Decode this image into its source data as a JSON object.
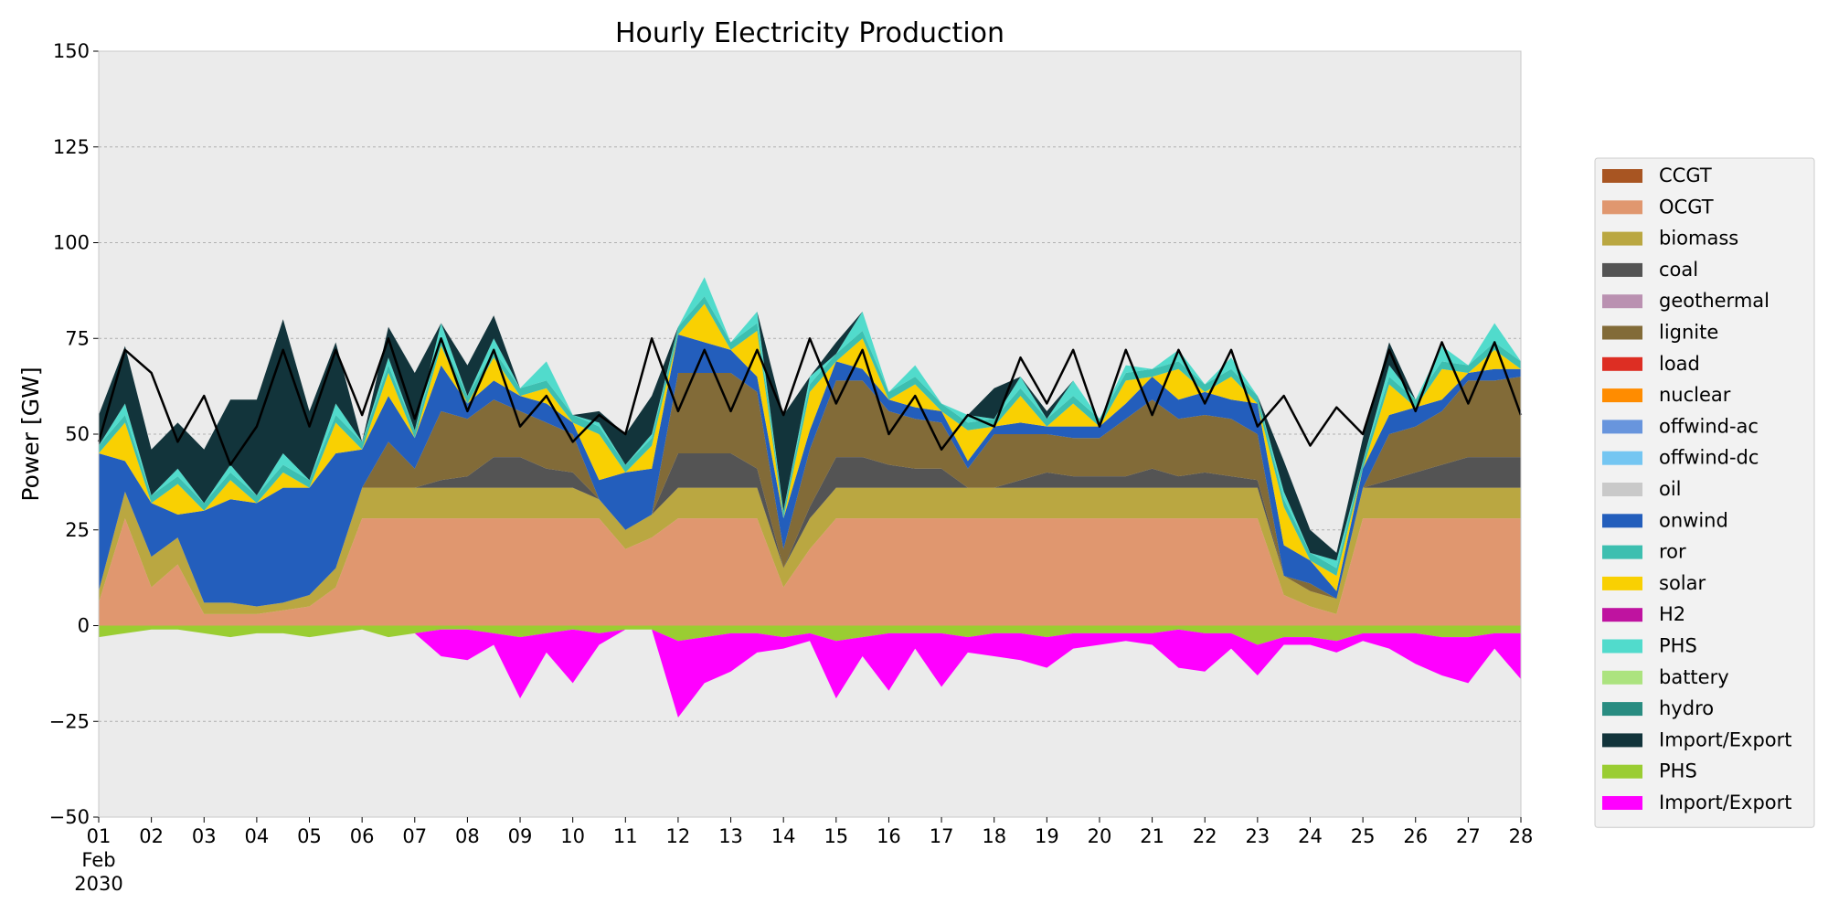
{
  "chart_data": {
    "type": "area",
    "title": "Hourly Electricity Production",
    "ylabel": "Power [GW]",
    "xlabel": "",
    "ylim": [
      -50,
      150
    ],
    "yticks": [
      -50,
      -25,
      0,
      25,
      50,
      75,
      100,
      125,
      150
    ],
    "ytick_labels": [
      "−50",
      "−25",
      "0",
      "25",
      "50",
      "75",
      "100",
      "125",
      "150"
    ],
    "xlim": [
      1,
      28
    ],
    "xticks": [
      1,
      2,
      3,
      4,
      5,
      6,
      7,
      8,
      9,
      10,
      11,
      12,
      13,
      14,
      15,
      16,
      17,
      18,
      19,
      20,
      21,
      22,
      23,
      24,
      25,
      26,
      27,
      28
    ],
    "xtick_labels": [
      "01",
      "02",
      "03",
      "04",
      "05",
      "06",
      "07",
      "08",
      "09",
      "10",
      "11",
      "12",
      "13",
      "14",
      "15",
      "16",
      "17",
      "18",
      "19",
      "20",
      "21",
      "22",
      "23",
      "24",
      "25",
      "26",
      "27",
      "28"
    ],
    "xtick_sublabel": [
      "Feb",
      "2030"
    ],
    "grid": true,
    "legend_position": "right",
    "x_unit": "day of February 2030",
    "x": [
      1,
      1.5,
      2,
      2.5,
      3,
      3.5,
      4,
      4.5,
      5,
      5.5,
      6,
      6.5,
      7,
      7.5,
      8,
      8.5,
      9,
      9.5,
      10,
      10.5,
      11,
      11.5,
      12,
      12.5,
      13,
      13.5,
      14,
      14.5,
      15,
      15.5,
      16,
      16.5,
      17,
      17.5,
      18,
      18.5,
      19,
      19.5,
      20,
      20.5,
      21,
      21.5,
      22,
      22.5,
      23,
      23.5,
      24,
      24.5,
      25,
      25.5,
      26,
      26.5,
      27,
      27.5,
      28
    ],
    "series": [
      {
        "name": "OCGT",
        "color": "#e0976f",
        "values": [
          6,
          28,
          10,
          16,
          3,
          3,
          3,
          4,
          5,
          10,
          28,
          28,
          28,
          28,
          28,
          28,
          28,
          28,
          28,
          28,
          20,
          23,
          28,
          28,
          28,
          28,
          10,
          20,
          28,
          28,
          28,
          28,
          28,
          28,
          28,
          28,
          28,
          28,
          28,
          28,
          28,
          28,
          28,
          28,
          28,
          8,
          5,
          3,
          28,
          28,
          28,
          28,
          28,
          28,
          28
        ]
      },
      {
        "name": "biomass",
        "color": "#baa741",
        "values": [
          3,
          7,
          8,
          7,
          3,
          3,
          2,
          2,
          3,
          5,
          8,
          8,
          8,
          8,
          8,
          8,
          8,
          8,
          8,
          5,
          5,
          6,
          8,
          8,
          8,
          8,
          5,
          8,
          8,
          8,
          8,
          8,
          8,
          8,
          8,
          8,
          8,
          8,
          8,
          8,
          8,
          8,
          8,
          8,
          8,
          5,
          4,
          4,
          8,
          8,
          8,
          8,
          8,
          8,
          8
        ]
      },
      {
        "name": "coal",
        "color": "#545454",
        "values": [
          0,
          0,
          0,
          0,
          0,
          0,
          0,
          0,
          0,
          0,
          0,
          0,
          0,
          2,
          3,
          8,
          8,
          5,
          4,
          0,
          0,
          0,
          9,
          9,
          9,
          5,
          0,
          3,
          8,
          8,
          6,
          5,
          5,
          0,
          0,
          2,
          4,
          3,
          3,
          3,
          5,
          3,
          4,
          3,
          2,
          0,
          0,
          0,
          0,
          2,
          4,
          6,
          8,
          8,
          8
        ]
      },
      {
        "name": "lignite",
        "color": "#826b38",
        "values": [
          0,
          0,
          0,
          0,
          0,
          0,
          0,
          0,
          0,
          0,
          0,
          12,
          5,
          18,
          15,
          15,
          12,
          12,
          10,
          0,
          0,
          0,
          21,
          21,
          21,
          20,
          5,
          15,
          20,
          20,
          14,
          13,
          12,
          5,
          14,
          12,
          10,
          10,
          10,
          15,
          18,
          15,
          15,
          15,
          12,
          0,
          2,
          0,
          0,
          12,
          12,
          14,
          20,
          20,
          21
        ]
      },
      {
        "name": "onwind",
        "color": "#235ebc",
        "values": [
          36,
          8,
          14,
          6,
          24,
          27,
          27,
          30,
          28,
          30,
          10,
          12,
          8,
          12,
          4,
          5,
          4,
          5,
          3,
          5,
          15,
          12,
          10,
          8,
          6,
          4,
          8,
          5,
          5,
          3,
          3,
          3,
          3,
          2,
          2,
          3,
          2,
          3,
          3,
          4,
          6,
          5,
          6,
          5,
          8,
          8,
          6,
          2,
          5,
          5,
          5,
          3,
          2,
          3,
          2
        ]
      },
      {
        "name": "solar",
        "color": "#f9d002",
        "values": [
          0,
          10,
          0,
          8,
          0,
          5,
          0,
          4,
          0,
          8,
          0,
          6,
          0,
          5,
          0,
          6,
          0,
          4,
          0,
          12,
          0,
          6,
          0,
          10,
          0,
          12,
          0,
          10,
          0,
          8,
          0,
          6,
          0,
          8,
          0,
          7,
          0,
          6,
          0,
          6,
          0,
          8,
          0,
          6,
          0,
          10,
          0,
          4,
          0,
          8,
          0,
          8,
          0,
          5,
          0
        ]
      },
      {
        "name": "ror",
        "color": "#3dbfb0",
        "values": [
          2,
          2,
          2,
          2,
          2,
          2,
          2,
          2,
          2,
          2,
          2,
          2,
          2,
          2,
          2,
          2,
          2,
          2,
          2,
          2,
          2,
          2,
          2,
          2,
          2,
          2,
          2,
          2,
          2,
          2,
          2,
          2,
          2,
          2,
          2,
          2,
          2,
          2,
          2,
          2,
          2,
          2,
          2,
          2,
          2,
          2,
          2,
          2,
          2,
          2,
          2,
          2,
          2,
          2,
          2
        ]
      },
      {
        "name": "PHS",
        "color": "#51dbcc",
        "values": [
          0,
          3,
          0,
          2,
          0,
          2,
          0,
          3,
          0,
          3,
          0,
          2,
          0,
          4,
          0,
          3,
          0,
          5,
          0,
          1,
          0,
          1,
          0,
          5,
          0,
          3,
          0,
          2,
          0,
          5,
          0,
          3,
          0,
          2,
          0,
          3,
          0,
          4,
          0,
          2,
          0,
          3,
          0,
          3,
          0,
          2,
          0,
          2,
          0,
          3,
          0,
          4,
          0,
          5,
          0
        ]
      },
      {
        "name": "Import/Export",
        "color": "#12343b",
        "values": [
          8,
          15,
          12,
          12,
          14,
          17,
          25,
          35,
          18,
          16,
          0,
          8,
          15,
          0,
          8,
          6,
          0,
          0,
          0,
          3,
          8,
          10,
          0,
          0,
          0,
          0,
          25,
          0,
          3,
          0,
          0,
          0,
          0,
          0,
          8,
          0,
          2,
          0,
          0,
          0,
          0,
          0,
          0,
          0,
          0,
          8,
          6,
          2,
          6,
          6,
          0,
          0,
          0,
          0,
          0
        ]
      },
      {
        "name": "PHS",
        "color": "#9acd32",
        "values": [
          -3,
          -2,
          -1,
          -1,
          -2,
          -3,
          -2,
          -2,
          -3,
          -2,
          -1,
          -3,
          -2,
          -1,
          -1,
          -2,
          -3,
          -2,
          -1,
          -2,
          -1,
          -1,
          -4,
          -3,
          -2,
          -2,
          -3,
          -2,
          -4,
          -3,
          -2,
          -2,
          -2,
          -3,
          -2,
          -2,
          -3,
          -2,
          -2,
          -2,
          -2,
          -1,
          -2,
          -2,
          -5,
          -3,
          -3,
          -4,
          -2,
          -2,
          -2,
          -3,
          -3,
          -2,
          -2
        ]
      },
      {
        "name": "Import/Export",
        "color": "#ff00ff",
        "values": [
          0,
          0,
          0,
          0,
          0,
          0,
          0,
          0,
          0,
          0,
          0,
          0,
          0,
          -7,
          -8,
          -3,
          -16,
          -5,
          -14,
          -3,
          0,
          0,
          -20,
          -12,
          -10,
          -5,
          -3,
          -2,
          -15,
          -5,
          -15,
          -4,
          -14,
          -4,
          -6,
          -7,
          -8,
          -4,
          -3,
          -2,
          -3,
          -10,
          -10,
          -4,
          -8,
          -2,
          -2,
          -3,
          -2,
          -4,
          -8,
          -10,
          -12,
          -4,
          -12
        ]
      }
    ],
    "load": {
      "name": "load",
      "color": "#000000",
      "values": [
        48,
        72,
        66,
        48,
        60,
        42,
        52,
        72,
        52,
        72,
        55,
        75,
        54,
        75,
        56,
        72,
        52,
        60,
        48,
        55,
        50,
        75,
        56,
        72,
        56,
        72,
        55,
        75,
        58,
        72,
        50,
        60,
        46,
        55,
        52,
        70,
        58,
        72,
        52,
        72,
        55,
        72,
        58,
        72,
        52,
        60,
        47,
        57,
        50,
        72,
        56,
        74,
        58,
        74,
        55
      ]
    },
    "legend": [
      {
        "label": "CCGT",
        "color": "#a85522"
      },
      {
        "label": "OCGT",
        "color": "#e0976f"
      },
      {
        "label": "biomass",
        "color": "#baa741"
      },
      {
        "label": "coal",
        "color": "#545454"
      },
      {
        "label": "geothermal",
        "color": "#ba91b1"
      },
      {
        "label": "lignite",
        "color": "#826b38"
      },
      {
        "label": "load",
        "color": "#dd2e23"
      },
      {
        "label": "nuclear",
        "color": "#ff8c00"
      },
      {
        "label": "offwind-ac",
        "color": "#6895dd"
      },
      {
        "label": "offwind-dc",
        "color": "#74c6f2"
      },
      {
        "label": "oil",
        "color": "#c9c9c9"
      },
      {
        "label": "onwind",
        "color": "#235ebc"
      },
      {
        "label": "ror",
        "color": "#3dbfb0"
      },
      {
        "label": "solar",
        "color": "#f9d002"
      },
      {
        "label": "H2",
        "color": "#bf13a0"
      },
      {
        "label": "PHS",
        "color": "#51dbcc"
      },
      {
        "label": "battery",
        "color": "#ace37f"
      },
      {
        "label": "hydro",
        "color": "#298c81"
      },
      {
        "label": "Import/Export",
        "color": "#12343b"
      },
      {
        "label": "PHS",
        "color": "#9acd32"
      },
      {
        "label": "Import/Export",
        "color": "#ff00ff"
      }
    ],
    "plot_background": "#ebebeb"
  }
}
